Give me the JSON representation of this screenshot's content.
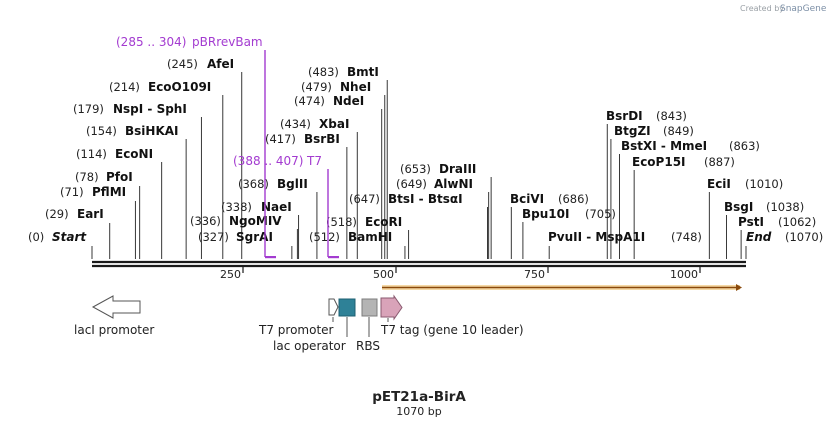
{
  "header": {
    "created_by": "Created by",
    "brand": "SnapGene"
  },
  "map": {
    "title": "pET21a-BirA",
    "length_label": "1070 bp",
    "total_bp": 1070,
    "ruler_ticks": [
      {
        "bp": 250,
        "label": "250"
      },
      {
        "bp": 500,
        "label": "500"
      },
      {
        "bp": 750,
        "label": "750"
      },
      {
        "bp": 1000,
        "label": "1000"
      }
    ]
  },
  "enzymes_left": [
    {
      "name": "Start",
      "pos": "(0)",
      "bp": 0,
      "italic": true
    },
    {
      "name": "EarI",
      "pos": "(29)",
      "bp": 29
    },
    {
      "name": "PflMI",
      "pos": "(71)",
      "bp": 71
    },
    {
      "name": "PfoI",
      "pos": "(78)",
      "bp": 78
    },
    {
      "name": "EcoNI",
      "pos": "(114)",
      "bp": 114
    },
    {
      "name": "BsiHKAI",
      "pos": "(154)",
      "bp": 154
    },
    {
      "name": "NspI - SphI",
      "pos": "(179)",
      "bp": 179
    },
    {
      "name": "EcoO109I",
      "pos": "(214)",
      "bp": 214
    },
    {
      "name": "AfeI",
      "pos": "(245)",
      "bp": 245
    },
    {
      "name": "SgrAI",
      "pos": "(327)",
      "bp": 327
    },
    {
      "name": "NgoMIV",
      "pos": "(336)",
      "bp": 336
    },
    {
      "name": "NaeI",
      "pos": "(338)",
      "bp": 338
    },
    {
      "name": "BglII",
      "pos": "(368)",
      "bp": 368
    },
    {
      "name": "BsrBI",
      "pos": "(417)",
      "bp": 417
    },
    {
      "name": "XbaI",
      "pos": "(434)",
      "bp": 434
    },
    {
      "name": "NdeI",
      "pos": "(474)",
      "bp": 474
    },
    {
      "name": "NheI",
      "pos": "(479)",
      "bp": 479
    },
    {
      "name": "BmtI",
      "pos": "(483)",
      "bp": 483
    },
    {
      "name": "BamHI",
      "pos": "(512)",
      "bp": 512
    },
    {
      "name": "EcoRI",
      "pos": "(518)",
      "bp": 518
    },
    {
      "name": "BtsI - BtsαI",
      "pos": "(647)",
      "bp": 647
    }
  ],
  "enzymes_right": [
    {
      "name": "AlwNI",
      "pos": "(649)",
      "bp": 649
    },
    {
      "name": "DraIII",
      "pos": "(653)",
      "bp": 653
    },
    {
      "name": "BciVI",
      "pos": "(686)",
      "bp": 686
    },
    {
      "name": "Bpu10I",
      "pos": "(705)",
      "bp": 705
    },
    {
      "name": "PvuII - MspA1I",
      "pos": "(748)",
      "bp": 748
    },
    {
      "name": "BsrDI",
      "pos": "(843)",
      "bp": 843
    },
    {
      "name": "BtgZI",
      "pos": "(849)",
      "bp": 849
    },
    {
      "name": "BstXI - MmeI",
      "pos": "(863)",
      "bp": 863
    },
    {
      "name": "EcoP15I",
      "pos": "(887)",
      "bp": 887
    },
    {
      "name": "EciI",
      "pos": "(1010)",
      "bp": 1010
    },
    {
      "name": "BsgI",
      "pos": "(1038)",
      "bp": 1038
    },
    {
      "name": "PstI",
      "pos": "(1062)",
      "bp": 1062
    },
    {
      "name": "End",
      "pos": "(1070)",
      "bp": 1070,
      "italic": true
    }
  ],
  "primers": [
    {
      "name": "pBRrevBam",
      "pos": "(285 .. 304)",
      "start": 285,
      "end": 304
    },
    {
      "name": "T7",
      "pos": "(388 .. 407)",
      "start": 388,
      "end": 407
    }
  ],
  "features": [
    {
      "name": "lacI promoter",
      "type": "promoter-reverse",
      "color": "#ffffff"
    },
    {
      "name": "T7 promoter",
      "type": "promoter",
      "color": "#ffffff"
    },
    {
      "name": "lac operator",
      "type": "operator",
      "color": "#2e8197"
    },
    {
      "name": "RBS",
      "type": "rbs",
      "color": "#b4b4b4"
    },
    {
      "name": "T7 tag (gene 10 leader)",
      "type": "tag",
      "color": "#d9a3b9"
    }
  ],
  "orf": {
    "color": "#e6ac5a",
    "start": 500,
    "end": 1070
  },
  "colors": {
    "backbone": "#1a1a1a",
    "leader": "#222222",
    "primer": "#a33bd0",
    "watermark": "#9aa0a6"
  }
}
